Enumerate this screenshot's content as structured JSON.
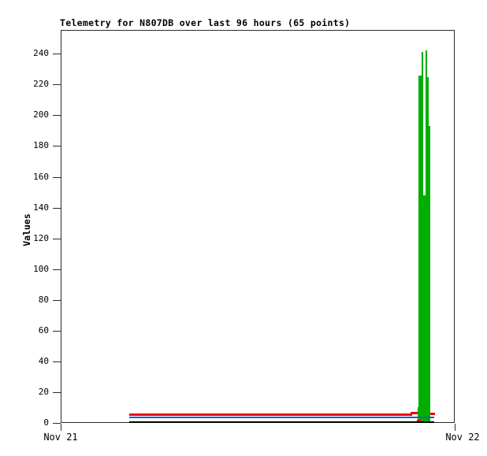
{
  "title": "Telemetry for N807DB over last 96 hours (65 points)",
  "ylabel": "Values",
  "x_axis": {
    "tick_labels": [
      "Nov 21",
      "Nov 22"
    ]
  },
  "y_axis": {
    "tick_values": [
      0,
      20,
      40,
      60,
      80,
      100,
      120,
      140,
      160,
      180,
      200,
      220,
      240
    ]
  },
  "colors": {
    "green": "#00ad00",
    "red": "#ee0000",
    "blue": "#1b5ec8",
    "black": "#000000",
    "border": "#2b2b2b"
  },
  "chart_data": {
    "type": "line",
    "title": "Telemetry for N807DB over last 96 hours (65 points)",
    "xlabel": "",
    "ylabel": "Values",
    "ylim": [
      0,
      255
    ],
    "x_range_labels": [
      "Nov 21",
      "Nov 22"
    ],
    "grid": false,
    "legend": "none",
    "points_count": 65,
    "series": [
      {
        "name": "red-series",
        "color": "#ee0000",
        "style": "line",
        "layer": "behind-green",
        "segments": [
          {
            "x0": 0.174,
            "x1": 0.892,
            "v": 5.5
          },
          {
            "x0": 0.888,
            "x1": 0.905,
            "v": 6.4
          },
          {
            "x0": 0.933,
            "x1": 0.95,
            "v": 5.9
          }
        ]
      },
      {
        "name": "green-series",
        "color": "#00ad00",
        "style": "impulse",
        "layer": "mid",
        "bars": [
          {
            "x0": 0.905,
            "x1": 0.938,
            "v": 10
          },
          {
            "x0": 0.908,
            "x1": 0.915,
            "v": 226
          },
          {
            "x0": 0.915,
            "x1": 0.92,
            "v": 241
          },
          {
            "x0": 0.92,
            "x1": 0.925,
            "v": 148
          },
          {
            "x0": 0.925,
            "x1": 0.93,
            "v": 242
          },
          {
            "x0": 0.93,
            "x1": 0.933,
            "v": 225
          },
          {
            "x0": 0.933,
            "x1": 0.938,
            "v": 193
          }
        ]
      },
      {
        "name": "red-series-dip",
        "color": "#ee0000",
        "style": "line",
        "layer": "front",
        "segments": [
          {
            "x0": 0.904,
            "x1": 0.914,
            "v": 1.3
          }
        ]
      },
      {
        "name": "blue-series",
        "color": "#1b5ec8",
        "style": "line",
        "layer": "front",
        "segments": [
          {
            "x0": 0.174,
            "x1": 0.948,
            "v": 3.5
          }
        ]
      },
      {
        "name": "black-series",
        "color": "#000000",
        "style": "line",
        "layer": "front",
        "segments": [
          {
            "x0": 0.174,
            "x1": 0.948,
            "v": 0.4
          }
        ]
      }
    ]
  }
}
